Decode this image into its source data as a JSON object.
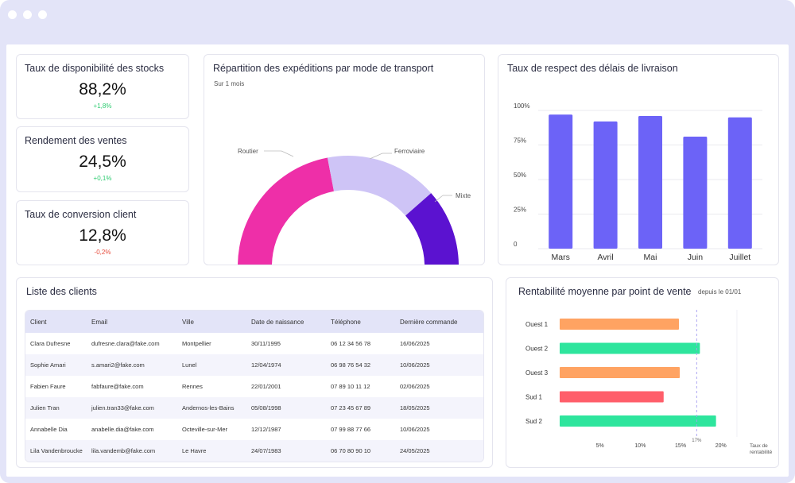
{
  "kpis": [
    {
      "title": "Taux de disponibilité des stocks",
      "value": "88,2%",
      "delta": "+1,8%",
      "trend": "up"
    },
    {
      "title": "Rendement des ventes",
      "value": "24,5%",
      "delta": "+0,1%",
      "trend": "up"
    },
    {
      "title": "Taux de conversion client",
      "value": "12,8%",
      "delta": "-0,2%",
      "trend": "down"
    }
  ],
  "donut": {
    "title": "Répartition des expéditions par mode de transport",
    "subtitle": "Sur 1 mois"
  },
  "bar_chart": {
    "title": "Taux de respect des délais de livraison"
  },
  "hbar": {
    "title": "Rentabilité moyenne par point de vente",
    "subtitle": "depuis le 01/01"
  },
  "clients": {
    "title": "Liste des clients",
    "headers": [
      "Client",
      "Email",
      "Ville",
      "Date de naissance",
      "Téléphone",
      "Dernière commande"
    ],
    "rows": [
      [
        "Clara Dufresne",
        "dufresne.clara@fake.com",
        "Montpellier",
        "30/11/1995",
        "06 12 34 56 78",
        "16/06/2025"
      ],
      [
        "Sophie Amari",
        "s.amari2@fake.com",
        "Lunel",
        "12/04/1974",
        "06 98 76 54 32",
        "10/06/2025"
      ],
      [
        "Fabien Faure",
        "fabfaure@fake.com",
        "Rennes",
        "22/01/2001",
        "07 89 10 11 12",
        "02/06/2025"
      ],
      [
        "Julien Tran",
        "julien.tran33@fake.com",
        "Andernos-les-Bains",
        "05/08/1998",
        "07 23 45 67 89",
        "18/05/2025"
      ],
      [
        "Annabelle Dia",
        "anabelle.dia@fake.com",
        "Octeville-sur-Mer",
        "12/12/1987",
        "07 99 88 77 66",
        "10/06/2025"
      ],
      [
        "Lila Vandenbroucke",
        "lila.vandemb@fake.com",
        "Le Havre",
        "24/07/1983",
        "06 70 80 90 10",
        "24/05/2025"
      ]
    ]
  },
  "chart_data": [
    {
      "type": "pie",
      "title": "Répartition des expéditions par mode de transport",
      "subtitle": "Sur 1 mois",
      "categories": [
        "Routier",
        "Ferroviaire",
        "Mixte"
      ],
      "values": [
        44,
        33,
        23
      ],
      "colors": [
        "#ee2fa8",
        "#cec4f6",
        "#5b12d0"
      ],
      "variant": "half-donut"
    },
    {
      "type": "bar",
      "title": "Taux de respect des délais de livraison",
      "categories": [
        "Mars",
        "Avril",
        "Mai",
        "Juin",
        "Juillet"
      ],
      "values": [
        97,
        92,
        96,
        81,
        95
      ],
      "ylim": [
        0,
        100
      ],
      "yticks": [
        "0",
        "25%",
        "50%",
        "75%",
        "100%"
      ],
      "ytick_values": [
        0,
        25,
        50,
        75,
        100
      ],
      "color": "#6c63f7"
    },
    {
      "type": "bar",
      "orientation": "horizontal",
      "title": "Rentabilité moyenne par point de vente",
      "subtitle": "depuis le 01/01",
      "categories": [
        "Ouest 1",
        "Ouest 2",
        "Ouest 3",
        "Sud 1",
        "Sud 2"
      ],
      "values": [
        14.8,
        17.4,
        14.9,
        12.9,
        19.4
      ],
      "colors": [
        "#ffa362",
        "#2ee59d",
        "#ffa362",
        "#ff5e6a",
        "#2ee59d"
      ],
      "xlim": [
        0,
        22
      ],
      "xticks": [
        "5%",
        "10%",
        "15%",
        "20%"
      ],
      "xtick_values": [
        5,
        10,
        15,
        20
      ],
      "target_label": "17%",
      "target_value": 17,
      "xlabel": "Taux de rentabilité"
    }
  ]
}
